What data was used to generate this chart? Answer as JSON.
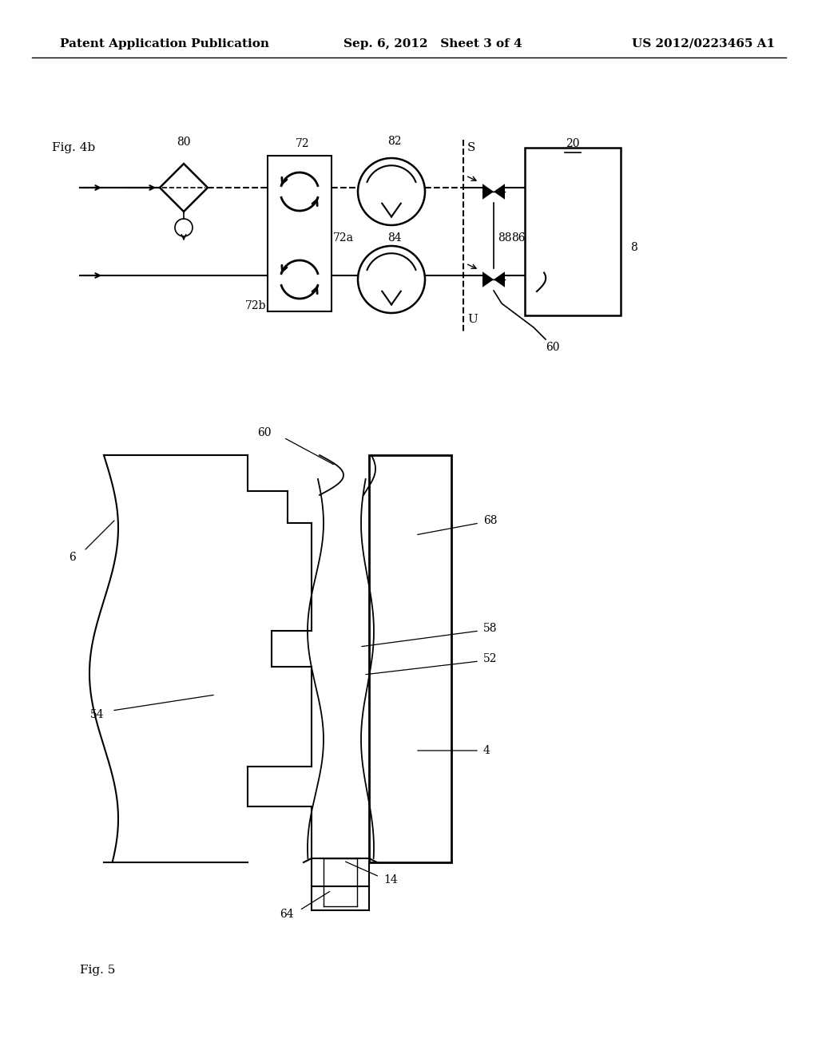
{
  "bg_color": "#ffffff",
  "header_left": "Patent Application Publication",
  "header_mid": "Sep. 6, 2012   Sheet 3 of 4",
  "header_right": "US 2012/0223465 A1"
}
